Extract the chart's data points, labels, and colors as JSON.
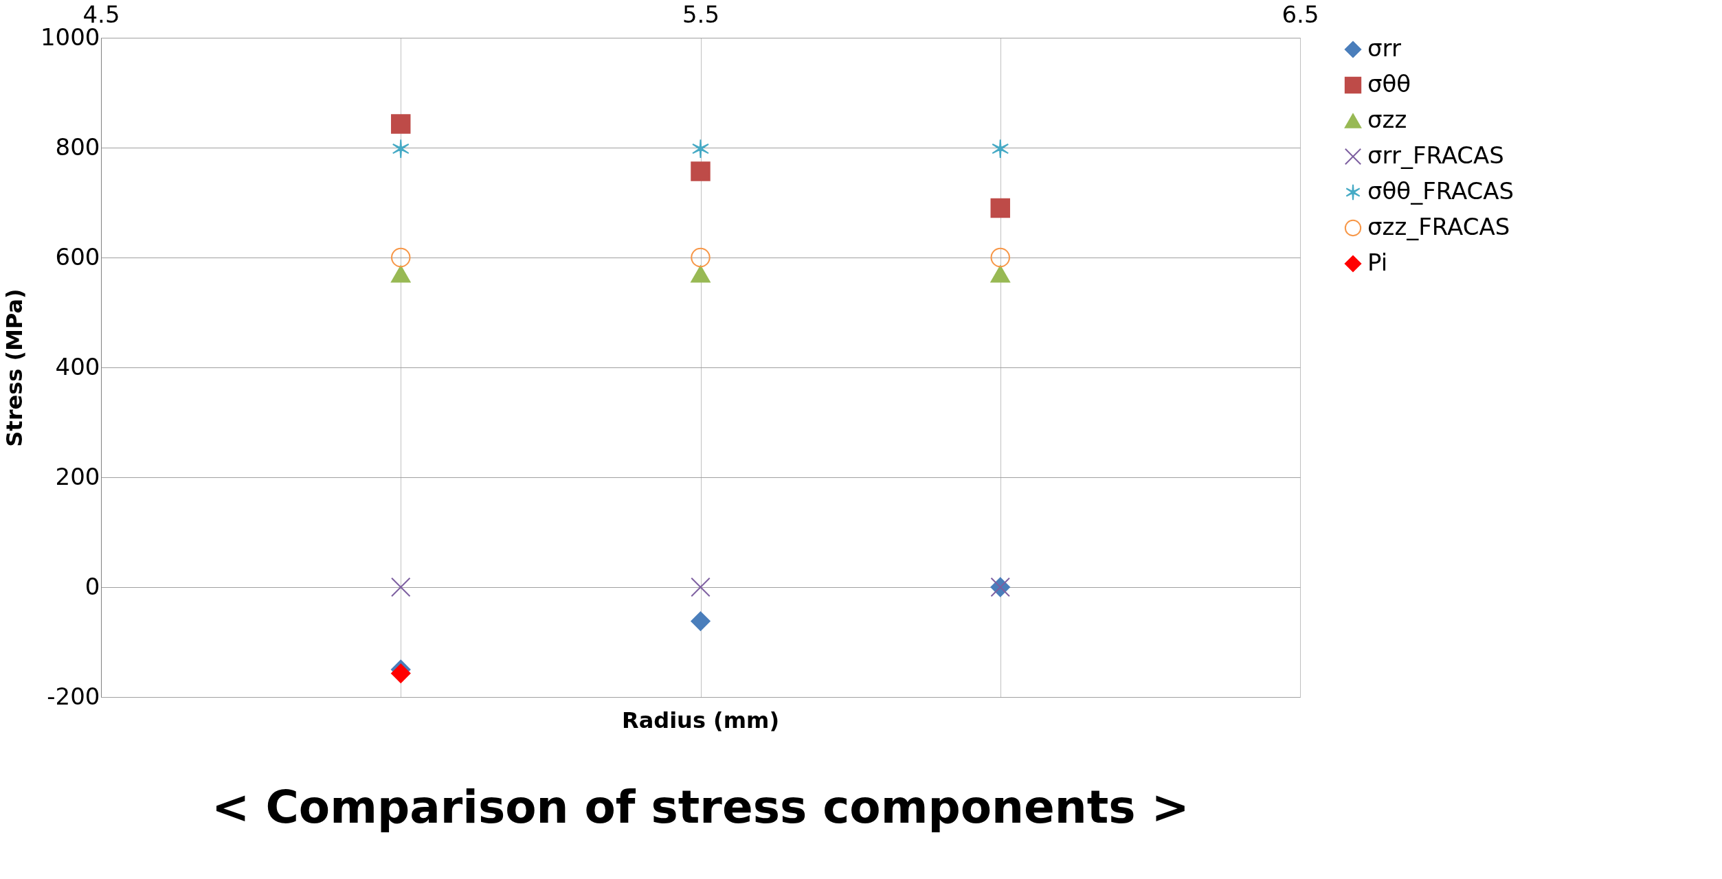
{
  "chart_data": {
    "type": "scatter",
    "title": "< Comparison of stress components >",
    "xlabel": "Radius (mm)",
    "ylabel": "Stress (MPa)",
    "x": [
      5,
      5.5,
      6
    ],
    "series": [
      {
        "name": "σrr",
        "color": "#4a7ebb",
        "marker": "diamond",
        "values": [
          -150,
          -62,
          0
        ]
      },
      {
        "name": "σθθ",
        "color": "#be4b48",
        "marker": "square",
        "values": [
          843,
          757,
          690
        ]
      },
      {
        "name": "σzz",
        "color": "#98b954",
        "marker": "triangle",
        "values": [
          570,
          570,
          570
        ]
      },
      {
        "name": "σrr_FRACAS",
        "color": "#7d5fa0",
        "marker": "cross",
        "values": [
          0,
          0,
          0
        ]
      },
      {
        "name": "σθθ_FRACAS",
        "color": "#46aac5",
        "marker": "cross",
        "values": [
          798,
          798,
          798
        ]
      },
      {
        "name": "σzz_FRACAS",
        "color": "#f79646",
        "marker": "circle",
        "values": [
          600,
          600,
          600
        ]
      },
      {
        "name": "Pi",
        "color": "#ff0000",
        "marker": "diamond",
        "x": [
          5
        ],
        "values": [
          -157
        ]
      }
    ],
    "xlim": [
      4.5,
      6.5
    ],
    "xticks": [
      4.5,
      {
        "value": 5,
        "label": null
      },
      5.5,
      {
        "value": 6,
        "label": null
      },
      6.5
    ],
    "ylim": [
      -200,
      1000
    ],
    "yticks": [
      -200,
      0,
      200,
      400,
      600,
      800,
      1000
    ],
    "grid": true,
    "legend": "right"
  }
}
